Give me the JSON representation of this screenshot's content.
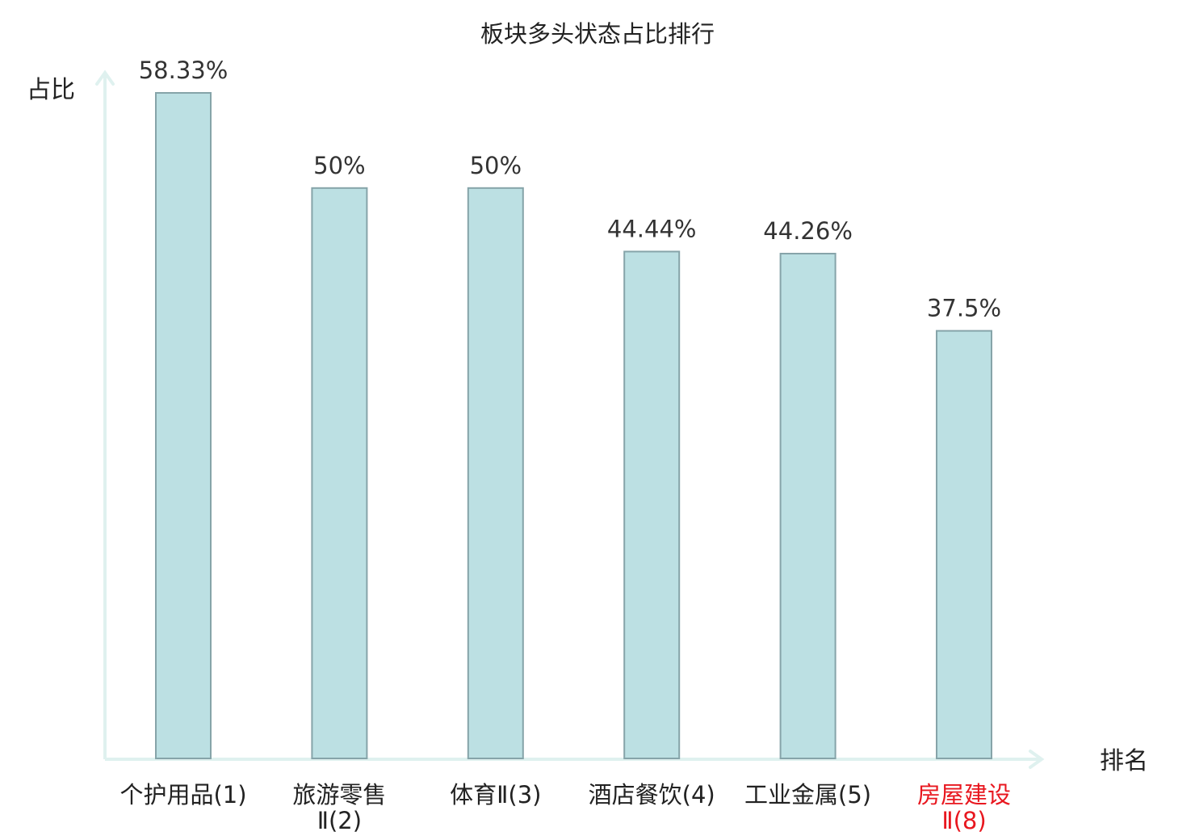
{
  "chart_data": {
    "type": "bar",
    "title": "板块多头状态占比排行",
    "ylabel": "占比",
    "xlabel": "排名",
    "categories": [
      {
        "lines": [
          "个护用品(1)"
        ],
        "highlight": false
      },
      {
        "lines": [
          "旅游零售",
          "Ⅱ(2)"
        ],
        "highlight": false
      },
      {
        "lines": [
          "体育Ⅱ(3)"
        ],
        "highlight": false
      },
      {
        "lines": [
          "酒店餐饮(4)"
        ],
        "highlight": false
      },
      {
        "lines": [
          "工业金属(5)"
        ],
        "highlight": false
      },
      {
        "lines": [
          "房屋建设",
          "Ⅱ(8)"
        ],
        "highlight": true
      }
    ],
    "values": [
      58.33,
      50,
      50,
      44.44,
      44.26,
      37.5
    ],
    "value_labels": [
      "58.33%",
      "50%",
      "50%",
      "44.44%",
      "44.26%",
      "37.5%"
    ],
    "ylim": [
      0,
      60
    ],
    "grid": false,
    "colors": {
      "bar_fill": "#bce0e3",
      "bar_stroke": "#86a4a9",
      "axis": "#dff1ef",
      "label": "#222222",
      "highlight": "#e8171f"
    }
  }
}
